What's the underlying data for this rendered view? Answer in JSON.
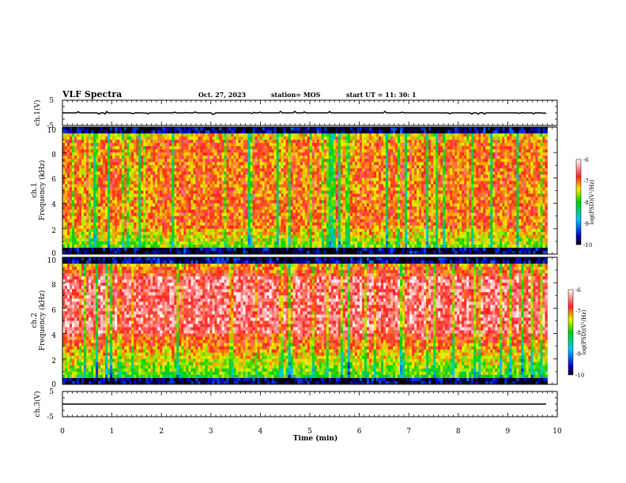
{
  "header": {
    "title": "VLF Spectra",
    "date": "Oct. 27, 2023",
    "station": "station= MOS",
    "start_ut": "start  UT  =   11: 30: 1"
  },
  "panels": {
    "ch1_wave_label": "ch.1(V)",
    "ch1_spec_label_a": "ch.1",
    "ch1_spec_label_b": "Frequency (kHz)",
    "ch2_spec_label_a": "ch.2",
    "ch2_spec_label_b": "Frequency (kHz)",
    "ch3_wave_label": "ch.3(V)",
    "colorbar_label": "log(PSD)(V²/Hz)"
  },
  "colors": {
    "lowest": "#000000",
    "low": "#0000c8",
    "mid_low": "#00c8ff",
    "mid": "#00d000",
    "mid_high": "#f0f000",
    "high": "#ff2020",
    "highest": "#ffffff"
  },
  "chart_data": [
    {
      "type": "line",
      "name": "ch1-waveform",
      "ylabel": "ch.1(V)",
      "ylim": [
        -5,
        5
      ],
      "yticks": [
        "5",
        "-5"
      ],
      "xlim": [
        0,
        10
      ],
      "trace_level": 0
    },
    {
      "type": "heatmap",
      "name": "ch1-spectrogram",
      "ylabel": "ch.1 Frequency (kHz)",
      "ylim": [
        0,
        10
      ],
      "yticks": [
        "0",
        "2",
        "4",
        "6",
        "8",
        "10"
      ],
      "xlim": [
        0,
        10
      ],
      "data_end_min": 9.8,
      "colorbar": {
        "label": "log(PSD)(V²/Hz)",
        "range": [
          -10,
          -6
        ],
        "ticks": [
          "-6",
          "-7",
          "-8",
          "-9",
          "-10"
        ]
      },
      "dominant_band_khz": [
        2,
        9
      ],
      "dominant_log_psd": -7
    },
    {
      "type": "heatmap",
      "name": "ch2-spectrogram",
      "ylabel": "ch.2 Frequency (kHz)",
      "ylim": [
        0,
        10
      ],
      "yticks": [
        "0",
        "2",
        "4",
        "6",
        "8",
        "10"
      ],
      "xlim": [
        0,
        10
      ],
      "data_end_min": 9.8,
      "colorbar": {
        "label": "log(PSD)(V²/Hz)",
        "range": [
          -10,
          -6
        ],
        "ticks": [
          "-6",
          "-7",
          "-8",
          "-9",
          "-10"
        ]
      },
      "dominant_band_khz": [
        4,
        8.5
      ],
      "dominant_log_psd": -6.5
    },
    {
      "type": "line",
      "name": "ch3-waveform",
      "ylabel": "ch.3(V)",
      "ylim": [
        -5,
        5
      ],
      "yticks": [
        "5",
        "-5"
      ],
      "xlim": [
        0,
        10
      ],
      "trace_level": 0,
      "xlabel": "Time (min)",
      "xticks": [
        "0",
        "1",
        "2",
        "3",
        "4",
        "5",
        "6",
        "7",
        "8",
        "9",
        "10"
      ]
    }
  ]
}
